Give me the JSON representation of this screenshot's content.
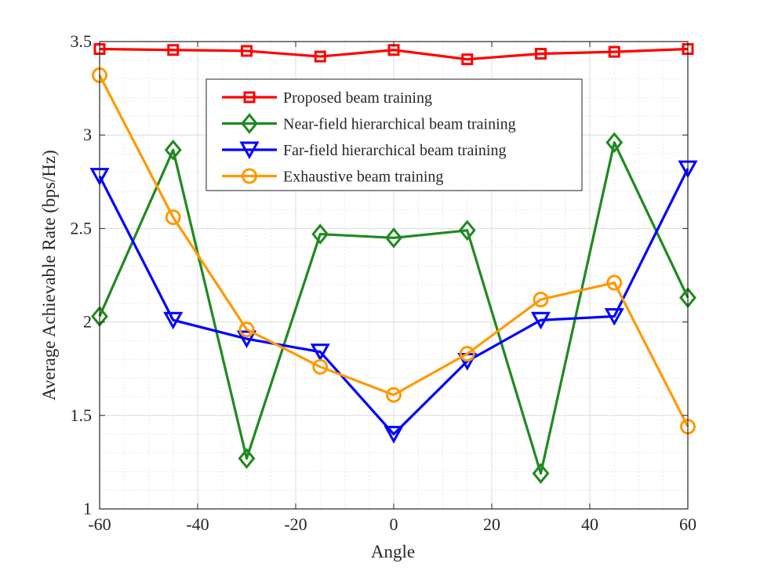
{
  "chart_data": {
    "type": "line",
    "title": "",
    "xlabel": "Angle",
    "ylabel": "Average Achievable Rate (bps/Hz)",
    "x": [
      -60,
      -45,
      -30,
      -15,
      0,
      15,
      30,
      45,
      60
    ],
    "xlim": [
      -60,
      60
    ],
    "ylim": [
      1,
      3.5
    ],
    "xticks": [
      -60,
      -40,
      -20,
      0,
      20,
      40,
      60
    ],
    "yticks": [
      1,
      1.5,
      2,
      2.5,
      3,
      3.5
    ],
    "xtick_labels": [
      "-60",
      "-40",
      "-20",
      "0",
      "20",
      "40",
      "60"
    ],
    "ytick_labels": [
      "1",
      "1.5",
      "2",
      "2.5",
      "3",
      "3.5"
    ],
    "grid": true,
    "minor_grid": true,
    "legend_position": "top-center",
    "series": [
      {
        "name": "Proposed beam training",
        "color": "#ff0000",
        "marker": "square",
        "values": [
          3.46,
          3.455,
          3.45,
          3.42,
          3.455,
          3.405,
          3.435,
          3.445,
          3.46
        ]
      },
      {
        "name": "Near-field hierarchical beam training",
        "color": "#1f8a1f",
        "marker": "diamond",
        "values": [
          2.03,
          2.92,
          1.27,
          2.47,
          2.45,
          2.49,
          1.19,
          2.96,
          2.13
        ]
      },
      {
        "name": "Far-field hierarchical beam training",
        "color": "#0000ff",
        "marker": "triangle-down",
        "values": [
          2.78,
          2.01,
          1.91,
          1.84,
          1.4,
          1.79,
          2.01,
          2.03,
          2.82
        ]
      },
      {
        "name": "Exhaustive beam training",
        "color": "#ff9900",
        "marker": "circle",
        "values": [
          3.32,
          2.56,
          1.96,
          1.76,
          1.61,
          1.83,
          2.12,
          2.21,
          1.44
        ]
      }
    ]
  }
}
